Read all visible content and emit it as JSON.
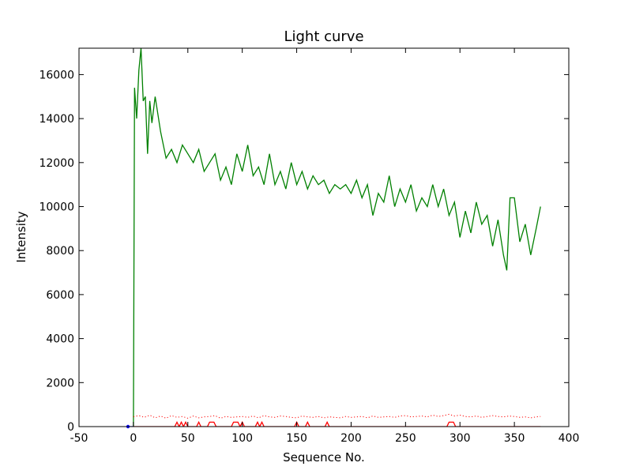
{
  "chart_data": {
    "type": "line",
    "title": "Light curve",
    "xlabel": "Sequence No.",
    "ylabel": "Intensity",
    "xlim": [
      -50,
      400
    ],
    "ylim": [
      0,
      17200
    ],
    "xticks": [
      -50,
      0,
      50,
      100,
      150,
      200,
      250,
      300,
      350,
      400
    ],
    "yticks": [
      0,
      2000,
      4000,
      6000,
      8000,
      10000,
      12000,
      14000,
      16000
    ],
    "grid": false,
    "legend": "none",
    "series": [
      {
        "style": "solid",
        "color": "#008000",
        "x": [
          0,
          1,
          3,
          5,
          7,
          9,
          11,
          13,
          15,
          17,
          20,
          25,
          30,
          35,
          40,
          45,
          50,
          55,
          60,
          65,
          70,
          75,
          80,
          85,
          90,
          95,
          100,
          105,
          110,
          115,
          120,
          125,
          130,
          135,
          140,
          145,
          150,
          155,
          160,
          165,
          170,
          175,
          180,
          185,
          190,
          195,
          200,
          205,
          210,
          215,
          220,
          225,
          230,
          235,
          240,
          245,
          250,
          255,
          260,
          265,
          270,
          275,
          280,
          285,
          290,
          295,
          300,
          305,
          310,
          315,
          320,
          325,
          330,
          335,
          340,
          343,
          346,
          350,
          355,
          360,
          365,
          370,
          374
        ],
        "y": [
          0,
          15400,
          14000,
          16200,
          17200,
          14800,
          15000,
          12400,
          14800,
          13800,
          15000,
          13400,
          12200,
          12600,
          12000,
          12800,
          12400,
          12000,
          12600,
          11600,
          12000,
          12400,
          11200,
          11800,
          11000,
          12400,
          11600,
          12800,
          11400,
          11800,
          11000,
          12400,
          11000,
          11600,
          10800,
          12000,
          11000,
          11600,
          10800,
          11400,
          11000,
          11200,
          10600,
          11000,
          10800,
          11000,
          10600,
          11200,
          10400,
          11000,
          9600,
          10600,
          10200,
          11400,
          10000,
          10800,
          10200,
          11000,
          9800,
          10400,
          10000,
          11000,
          10000,
          10800,
          9600,
          10200,
          8600,
          9800,
          8800,
          10200,
          9200,
          9600,
          8200,
          9400,
          7800,
          7100,
          10400,
          10400,
          8400,
          9200,
          7800,
          9000,
          10000
        ]
      },
      {
        "style": "dotted",
        "color": "#ff0000",
        "x": [
          0,
          5,
          10,
          15,
          20,
          25,
          30,
          35,
          40,
          45,
          50,
          55,
          60,
          65,
          70,
          75,
          80,
          85,
          90,
          95,
          100,
          105,
          110,
          115,
          120,
          125,
          130,
          135,
          140,
          145,
          150,
          155,
          160,
          165,
          170,
          175,
          180,
          185,
          190,
          195,
          200,
          205,
          210,
          215,
          220,
          225,
          230,
          235,
          240,
          245,
          250,
          255,
          260,
          265,
          270,
          275,
          280,
          285,
          290,
          295,
          300,
          305,
          310,
          315,
          320,
          325,
          330,
          335,
          340,
          345,
          350,
          355,
          360,
          365,
          370,
          374
        ],
        "y": [
          450,
          500,
          420,
          520,
          400,
          480,
          380,
          500,
          420,
          460,
          380,
          480,
          400,
          440,
          460,
          500,
          380,
          460,
          420,
          440,
          460,
          420,
          480,
          400,
          500,
          440,
          420,
          480,
          460,
          420,
          400,
          480,
          440,
          420,
          460,
          400,
          440,
          420,
          400,
          460,
          420,
          440,
          460,
          400,
          480,
          420,
          440,
          460,
          420,
          480,
          500,
          440,
          460,
          480,
          440,
          520,
          460,
          500,
          560,
          480,
          520,
          460,
          440,
          480,
          420,
          460,
          500,
          460,
          440,
          480,
          460,
          420,
          440,
          400,
          440,
          460
        ]
      },
      {
        "style": "solid",
        "color": "#ff0000",
        "x": [
          0,
          38,
          40,
          42,
          44,
          46,
          48,
          50,
          58,
          60,
          62,
          68,
          70,
          72,
          74,
          76,
          90,
          92,
          96,
          98,
          100,
          102,
          112,
          114,
          116,
          118,
          120,
          148,
          150,
          152,
          158,
          160,
          162,
          176,
          178,
          180,
          288,
          290,
          294,
          296,
          374
        ],
        "y": [
          0,
          0,
          200,
          0,
          200,
          0,
          200,
          0,
          0,
          200,
          0,
          0,
          200,
          200,
          200,
          0,
          0,
          200,
          200,
          0,
          200,
          0,
          0,
          200,
          0,
          200,
          0,
          0,
          200,
          0,
          0,
          200,
          0,
          0,
          200,
          0,
          0,
          200,
          200,
          0,
          0
        ]
      },
      {
        "style": "solid",
        "color": "#0000ff",
        "x": [
          -5,
          0
        ],
        "y": [
          0,
          0
        ]
      }
    ]
  }
}
